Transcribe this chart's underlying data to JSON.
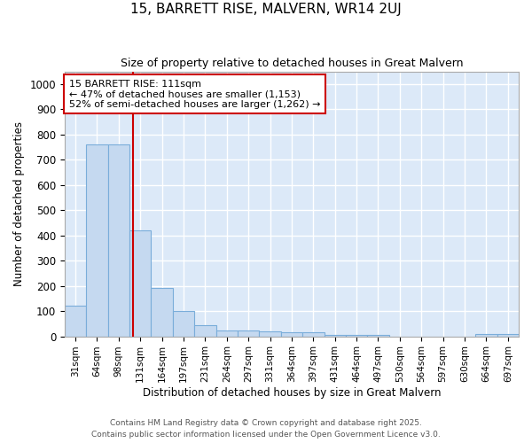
{
  "title1": "15, BARRETT RISE, MALVERN, WR14 2UJ",
  "title2": "Size of property relative to detached houses in Great Malvern",
  "xlabel": "Distribution of detached houses by size in Great Malvern",
  "ylabel": "Number of detached properties",
  "categories": [
    "31sqm",
    "64sqm",
    "98sqm",
    "131sqm",
    "164sqm",
    "197sqm",
    "231sqm",
    "264sqm",
    "297sqm",
    "331sqm",
    "364sqm",
    "397sqm",
    "431sqm",
    "464sqm",
    "497sqm",
    "530sqm",
    "564sqm",
    "597sqm",
    "630sqm",
    "664sqm",
    "697sqm"
  ],
  "values": [
    120,
    760,
    760,
    420,
    190,
    100,
    45,
    22,
    22,
    18,
    15,
    15,
    5,
    5,
    5,
    0,
    0,
    0,
    0,
    8,
    8
  ],
  "bar_color": "#c5d9f0",
  "bar_edge_color": "#7aadda",
  "vline_x": 2.65,
  "vline_color": "#cc0000",
  "annotation_text": "15 BARRETT RISE: 111sqm\n← 47% of detached houses are smaller (1,153)\n52% of semi-detached houses are larger (1,262) →",
  "annotation_box_color": "#ffffff",
  "annotation_box_edge": "#cc0000",
  "ylim": [
    0,
    1050
  ],
  "yticks": [
    0,
    100,
    200,
    300,
    400,
    500,
    600,
    700,
    800,
    900,
    1000
  ],
  "footer1": "Contains HM Land Registry data © Crown copyright and database right 2025.",
  "footer2": "Contains public sector information licensed under the Open Government Licence v3.0.",
  "bg_color": "#ffffff",
  "plot_bg_color": "#dce9f8",
  "grid_color": "#ffffff"
}
